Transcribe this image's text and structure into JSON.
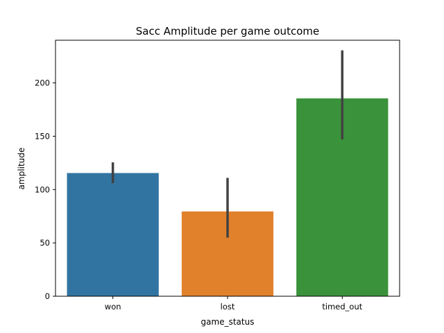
{
  "chart_data": {
    "type": "bar",
    "title": "Sacc Amplitude per game outcome",
    "xlabel": "game_status",
    "ylabel": "amplitude",
    "categories": [
      "won",
      "lost",
      "timed_out"
    ],
    "values": [
      115.5,
      79.5,
      185.5
    ],
    "error_low": [
      106,
      55,
      147
    ],
    "error_high": [
      125.5,
      111,
      230.5
    ],
    "colors": [
      "#3274a1",
      "#e1812c",
      "#3a923a"
    ],
    "error_color": "#424242",
    "ylim": [
      0,
      240
    ],
    "yticks": [
      0,
      50,
      100,
      150,
      200
    ],
    "grid": false
  }
}
